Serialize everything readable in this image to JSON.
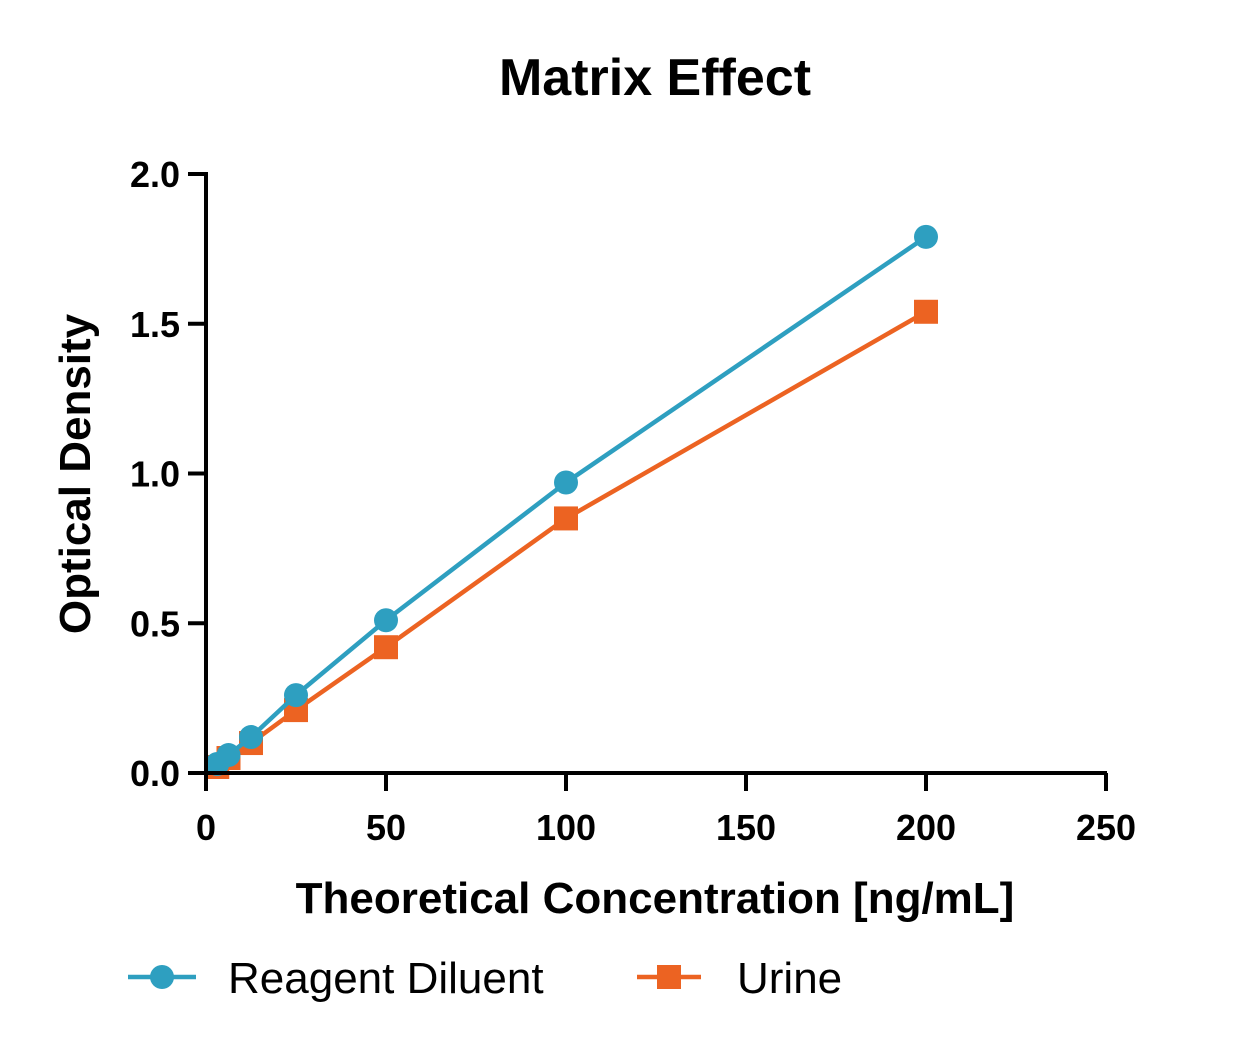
{
  "chart_data": {
    "type": "line",
    "title": "Matrix Effect",
    "xlabel": "Theoretical Concentration [ng/mL]",
    "ylabel": "Optical Density",
    "xlim": [
      0,
      250
    ],
    "ylim": [
      0,
      2.0
    ],
    "x_ticks": [
      0,
      50,
      100,
      150,
      200,
      250
    ],
    "y_ticks": [
      0.0,
      0.5,
      1.0,
      1.5,
      2.0
    ],
    "x_tick_labels": [
      "0",
      "50",
      "100",
      "150",
      "200",
      "250"
    ],
    "y_tick_labels": [
      "0.0",
      "0.5",
      "1.0",
      "1.5",
      "2.0"
    ],
    "grid": false,
    "legend_position": "bottom",
    "series": [
      {
        "name": "Reagent Diluent",
        "marker": "circle",
        "color": "#2e9fc0",
        "x": [
          3.125,
          6.25,
          12.5,
          25,
          50,
          100,
          200
        ],
        "y": [
          0.03,
          0.06,
          0.12,
          0.26,
          0.51,
          0.97,
          1.79
        ]
      },
      {
        "name": "Urine",
        "marker": "square",
        "color": "#ec6322",
        "x": [
          3.125,
          6.25,
          12.5,
          25,
          50,
          100,
          200
        ],
        "y": [
          0.02,
          0.05,
          0.1,
          0.21,
          0.42,
          0.85,
          1.54
        ]
      }
    ]
  }
}
